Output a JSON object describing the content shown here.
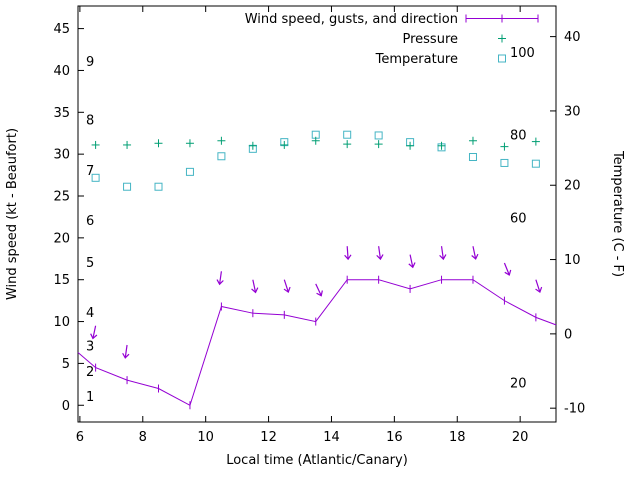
{
  "chart_data": {
    "type": "line",
    "title": "",
    "xlabel": "Local time (Atlantic/Canary)",
    "ylabel_left": "Wind speed (kt - Beaufort)",
    "ylabel_right": "Temperature (C - F)",
    "x_ticks": [
      6,
      8,
      10,
      12,
      14,
      16,
      18,
      20
    ],
    "x_range": [
      5.94,
      21.14
    ],
    "y_left_ticks": [
      0,
      5,
      10,
      15,
      20,
      25,
      30,
      35,
      40,
      45
    ],
    "y_left_range": [
      -2,
      47.7
    ],
    "y_right_ticks": [
      -10,
      0,
      10,
      20,
      30,
      40
    ],
    "y_right_range": [
      -11.86,
      44.12
    ],
    "grid": false,
    "legend_position": "top-center-inside",
    "legend": [
      {
        "label": "Wind speed, gusts, and direction",
        "marker": "yerrorline",
        "color": "#9400d3"
      },
      {
        "label": "Pressure",
        "marker": "plus",
        "color": "#009e73"
      },
      {
        "label": "Temperature",
        "marker": "open-square",
        "color": "#45b5c4"
      }
    ],
    "beaufort_scale": [
      {
        "text": "1",
        "kt": 1
      },
      {
        "text": "2",
        "kt": 4
      },
      {
        "text": "3",
        "kt": 7
      },
      {
        "text": "4",
        "kt": 11
      },
      {
        "text": "5",
        "kt": 17
      },
      {
        "text": "6",
        "kt": 22
      },
      {
        "text": "7",
        "kt": 28
      },
      {
        "text": "8",
        "kt": 34
      },
      {
        "text": "9",
        "kt": 41
      }
    ],
    "fahrenheit_scale": [
      {
        "text": "100",
        "fahrenheit": 100
      },
      {
        "text": "80",
        "fahrenheit": 80
      },
      {
        "text": "60",
        "fahrenheit": 60
      },
      {
        "text": "20",
        "fahrenheit": 20
      }
    ],
    "series": {
      "wind": {
        "x_hours": [
          6.5,
          7.5,
          8.5,
          9.5,
          10.5,
          11.5,
          12.5,
          13.5,
          14.5,
          15.5,
          16.5,
          17.5,
          18.5,
          19.5,
          20.5
        ],
        "kt": [
          4.5,
          3,
          2,
          0,
          11.8,
          11,
          10.8,
          10,
          15,
          15,
          13.9,
          15,
          15,
          12.5,
          10.5
        ],
        "edge_start": {
          "x": 5.94,
          "kt": 6.3
        },
        "edge_end": {
          "x": 21.14,
          "kt": 9.6
        }
      },
      "gusts": [
        {
          "x": 6.5,
          "kt": 9.5,
          "arrow_rotation_deg": 12
        },
        {
          "x": 7.5,
          "kt": 7.2,
          "arrow_rotation_deg": 8
        },
        {
          "x": 10.5,
          "kt": 16,
          "arrow_rotation_deg": 8
        },
        {
          "x": 11.5,
          "kt": 15,
          "arrow_rotation_deg": -12
        },
        {
          "x": 12.5,
          "kt": 15,
          "arrow_rotation_deg": -18
        },
        {
          "x": 13.5,
          "kt": 14.5,
          "arrow_rotation_deg": -25
        },
        {
          "x": 14.5,
          "kt": 19,
          "arrow_rotation_deg": -4
        },
        {
          "x": 15.5,
          "kt": 19,
          "arrow_rotation_deg": -8
        },
        {
          "x": 16.5,
          "kt": 18,
          "arrow_rotation_deg": -12
        },
        {
          "x": 17.5,
          "kt": 19,
          "arrow_rotation_deg": -8
        },
        {
          "x": 18.5,
          "kt": 19,
          "arrow_rotation_deg": -12
        },
        {
          "x": 19.5,
          "kt": 17,
          "arrow_rotation_deg": -22
        },
        {
          "x": 20.5,
          "kt": 15,
          "arrow_rotation_deg": -18
        }
      ],
      "pressure": {
        "x_hours": [
          6.5,
          7.5,
          8.5,
          9.5,
          10.5,
          11.5,
          12.5,
          13.5,
          14.5,
          15.5,
          16.5,
          17.5,
          18.5,
          19.5,
          20.5
        ],
        "value_left_axis_units": [
          31.1,
          31.1,
          31.3,
          31.3,
          31.6,
          31.0,
          31.1,
          31.6,
          31.2,
          31.2,
          31.0,
          31.0,
          31.6,
          30.9,
          31.5
        ]
      },
      "temperature": {
        "x_hours": [
          6.5,
          7.5,
          8.5,
          9.5,
          10.5,
          11.5,
          12.5,
          13.5,
          14.5,
          15.5,
          16.5,
          17.5,
          18.5,
          19.5,
          20.5
        ],
        "celsius": [
          21.0,
          19.8,
          19.8,
          21.8,
          23.9,
          24.9,
          25.8,
          26.8,
          26.8,
          26.7,
          25.8,
          25.1,
          23.8,
          23.0,
          22.9
        ]
      }
    },
    "colors": {
      "wind": "#9400d3",
      "pressure": "#009e73",
      "temperature": "#45b5c4",
      "axis": "#000000"
    }
  }
}
